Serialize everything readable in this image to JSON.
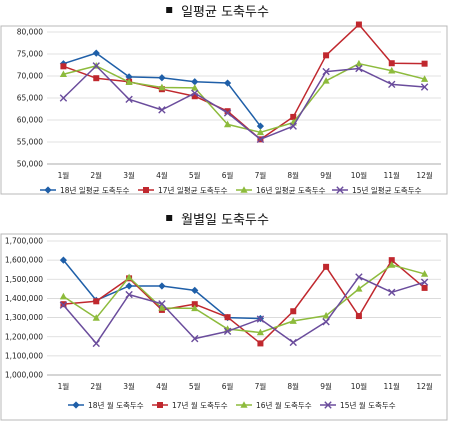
{
  "chart_data": [
    {
      "type": "line",
      "title": "일평균 도축두수",
      "xlabel": "",
      "ylabel": "",
      "categories": [
        "1월",
        "2월",
        "3월",
        "4월",
        "5월",
        "6월",
        "7월",
        "8월",
        "9월",
        "10월",
        "11월",
        "12월"
      ],
      "ylim": [
        50000,
        80000
      ],
      "yticks": [
        "80,000",
        "75,000",
        "70,000",
        "65,000",
        "60,000",
        "55,000",
        "50,000"
      ],
      "ytick_values": [
        80000,
        75000,
        70000,
        65000,
        60000,
        55000,
        50000
      ],
      "grid": true,
      "legend_position": "bottom",
      "series": [
        {
          "name": "18년 일평균 도축두수",
          "color": "#1f5fa8",
          "marker": "diamond",
          "values": [
            72800,
            75200,
            69800,
            69600,
            68700,
            68400,
            58600,
            null,
            null,
            null,
            null,
            null
          ]
        },
        {
          "name": "17년 일평균 도축두수",
          "color": "#c0282e",
          "marker": "square",
          "values": [
            72200,
            69500,
            68700,
            67000,
            65400,
            62000,
            55600,
            60700,
            74700,
            81700,
            72900,
            72800
          ]
        },
        {
          "name": "16년 일평균 도축두수",
          "color": "#8dbb3c",
          "marker": "triangle",
          "values": [
            70400,
            72300,
            68600,
            67400,
            67300,
            59000,
            57200,
            59400,
            68900,
            72800,
            71200,
            69300
          ]
        },
        {
          "name": "15년 일평균 도축두수",
          "color": "#6a4c9c",
          "marker": "x",
          "values": [
            65000,
            72300,
            64700,
            62300,
            66100,
            61600,
            55600,
            58600,
            71000,
            71700,
            68100,
            67500
          ]
        }
      ]
    },
    {
      "type": "line",
      "title": "월별일 도축두수",
      "xlabel": "",
      "ylabel": "",
      "categories": [
        "1월",
        "2월",
        "3월",
        "4월",
        "5월",
        "6월",
        "7월",
        "8월",
        "9월",
        "10월",
        "11월",
        "12월"
      ],
      "ylim": [
        1000000,
        1700000
      ],
      "yticks": [
        "1,700,000",
        "1,600,000",
        "1,500,000",
        "1,400,000",
        "1,300,000",
        "1,200,000",
        "1,100,000",
        "1,000,000"
      ],
      "ytick_values": [
        1700000,
        1600000,
        1500000,
        1400000,
        1300000,
        1200000,
        1100000,
        1000000
      ],
      "grid": true,
      "legend_position": "bottom",
      "series": [
        {
          "name": "18년 월 도축두수",
          "color": "#1f5fa8",
          "marker": "diamond",
          "values": [
            1600000,
            1390000,
            1465000,
            1465000,
            1442000,
            1300000,
            1295000,
            null,
            null,
            null,
            null,
            null
          ]
        },
        {
          "name": "17년 월 도축두수",
          "color": "#c0282e",
          "marker": "square",
          "values": [
            1370000,
            1385000,
            1505000,
            1340000,
            1370000,
            1302000,
            1165000,
            1333000,
            1565000,
            1308000,
            1600000,
            1455000
          ]
        },
        {
          "name": "16년 월 도축두수",
          "color": "#8dbb3c",
          "marker": "triangle",
          "values": [
            1410000,
            1298000,
            1510000,
            1350000,
            1348000,
            1240000,
            1222000,
            1282000,
            1310000,
            1450000,
            1575000,
            1528000
          ]
        },
        {
          "name": "15년 월 도축두수",
          "color": "#6a4c9c",
          "marker": "x",
          "values": [
            1365000,
            1165000,
            1420000,
            1372000,
            1190000,
            1228000,
            1292000,
            1170000,
            1278000,
            1512000,
            1432000,
            1485000
          ]
        }
      ]
    }
  ]
}
